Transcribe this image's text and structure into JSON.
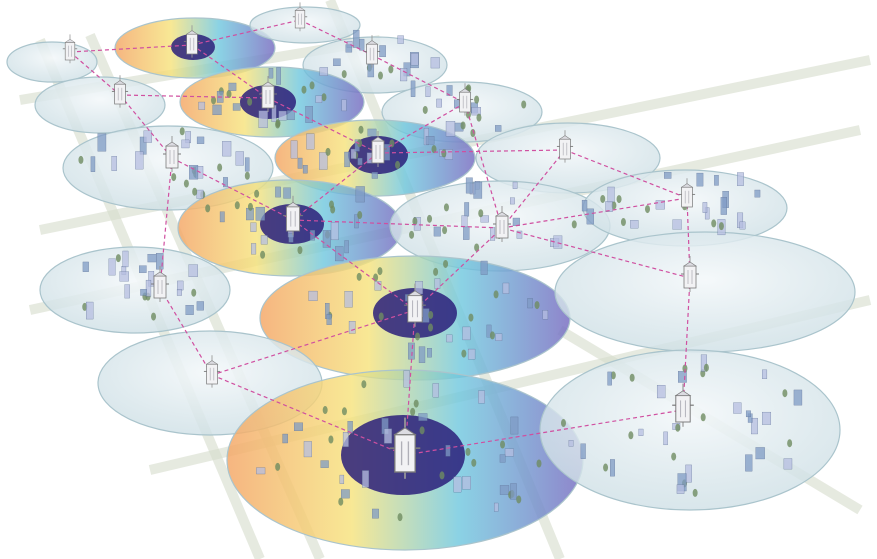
{
  "diagram": {
    "colors": {
      "background": "#ffffff",
      "road": "#d6dccb",
      "cell_fill": "#e2eef2",
      "cell_stroke": "#aac4cc",
      "core": "#2a1f7a",
      "link": "#d04fa0",
      "warm_a": "#f4a86a",
      "warm_b": "#f6e27a",
      "cool_a": "#6ec7de",
      "cool_b": "#7a6fc2",
      "tower": "#f2f2f4",
      "building_a": "#7f9bc4",
      "building_b": "#b5bde0",
      "tree": "#6f8c62"
    },
    "icons": {
      "tower": "cell-tower-icon",
      "building": "building-icon",
      "tree": "tree-icon"
    },
    "cell_types": [
      "standard",
      "highlighted"
    ],
    "text_labels": []
  }
}
